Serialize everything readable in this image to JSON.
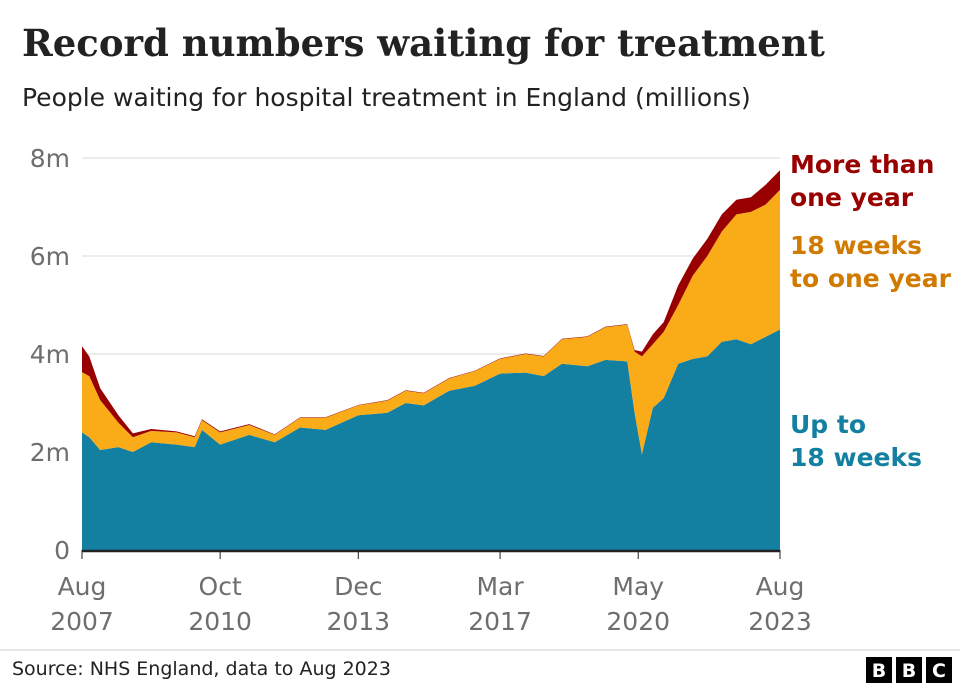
{
  "chart_data": {
    "type": "area",
    "stacked": true,
    "title": "Record numbers waiting for treatment",
    "subtitle": "People waiting for hospital treatment in England (millions)",
    "ylim": [
      0,
      8
    ],
    "yticks": [
      {
        "value": 0,
        "label": "0"
      },
      {
        "value": 2,
        "label": "2m"
      },
      {
        "value": 4,
        "label": "4m"
      },
      {
        "value": 6,
        "label": "6m"
      },
      {
        "value": 8,
        "label": "8m"
      }
    ],
    "xrange": [
      "2007-08",
      "2023-08"
    ],
    "xticks": [
      {
        "date": "2007-08",
        "line1": "Aug",
        "line2": "2007"
      },
      {
        "date": "2010-10",
        "line1": "Oct",
        "line2": "2010"
      },
      {
        "date": "2013-12",
        "line1": "Dec",
        "line2": "2013"
      },
      {
        "date": "2017-03",
        "line1": "Mar",
        "line2": "2017"
      },
      {
        "date": "2020-05",
        "line1": "May",
        "line2": "2020"
      },
      {
        "date": "2023-08",
        "line1": "Aug",
        "line2": "2023"
      }
    ],
    "grid": true,
    "legend_placement": "right, inline labels",
    "dates": [
      "2007-08",
      "2007-10",
      "2008-01",
      "2008-06",
      "2008-10",
      "2009-03",
      "2009-10",
      "2010-03",
      "2010-05",
      "2010-10",
      "2011-06",
      "2012-01",
      "2012-08",
      "2013-03",
      "2013-12",
      "2014-08",
      "2015-01",
      "2015-06",
      "2016-01",
      "2016-08",
      "2017-03",
      "2017-10",
      "2018-03",
      "2018-08",
      "2019-03",
      "2019-08",
      "2020-02",
      "2020-04",
      "2020-06",
      "2020-09",
      "2020-12",
      "2021-04",
      "2021-08",
      "2021-12",
      "2022-04",
      "2022-08",
      "2022-12",
      "2023-04",
      "2023-08"
    ],
    "series": [
      {
        "name": "Up to 18 weeks",
        "label_lines": [
          "Up to",
          "18 weeks"
        ],
        "color": "#1380A1",
        "label_color": "#1380A1",
        "values": [
          2.4,
          2.3,
          2.04,
          2.1,
          2.0,
          2.2,
          2.15,
          2.1,
          2.45,
          2.15,
          2.35,
          2.2,
          2.5,
          2.45,
          2.75,
          2.8,
          3.0,
          2.95,
          3.25,
          3.35,
          3.6,
          3.62,
          3.55,
          3.8,
          3.75,
          3.88,
          3.85,
          2.8,
          1.95,
          2.9,
          3.1,
          3.8,
          3.9,
          3.95,
          4.25,
          4.3,
          4.2,
          4.35,
          4.5
        ]
      },
      {
        "name": "18 weeks to one year",
        "label_lines": [
          "18 weeks",
          "to one year"
        ],
        "color": "#FAAB18",
        "label_color": "#D17A00",
        "values": [
          1.23,
          1.25,
          1.02,
          0.5,
          0.3,
          0.23,
          0.25,
          0.2,
          0.2,
          0.25,
          0.2,
          0.15,
          0.2,
          0.25,
          0.2,
          0.25,
          0.25,
          0.25,
          0.25,
          0.3,
          0.3,
          0.38,
          0.4,
          0.5,
          0.6,
          0.67,
          0.75,
          1.25,
          2.0,
          1.3,
          1.35,
          1.2,
          1.7,
          2.05,
          2.25,
          2.55,
          2.7,
          2.7,
          2.85
        ]
      },
      {
        "name": "More than one year",
        "label_lines": [
          "More than",
          "one year"
        ],
        "color": "#990000",
        "label_color": "#990000",
        "values": [
          0.53,
          0.4,
          0.24,
          0.15,
          0.08,
          0.04,
          0.02,
          0.02,
          0.02,
          0.02,
          0.02,
          0.01,
          0.01,
          0.01,
          0.01,
          0.01,
          0.01,
          0.01,
          0.01,
          0.01,
          0.01,
          0.01,
          0.01,
          0.01,
          0.01,
          0.01,
          0.01,
          0.03,
          0.1,
          0.2,
          0.2,
          0.4,
          0.35,
          0.35,
          0.35,
          0.3,
          0.3,
          0.4,
          0.4
        ]
      }
    ]
  },
  "footer": {
    "source": "Source: NHS England, data to Aug 2023",
    "logo_letters": [
      "B",
      "B",
      "C"
    ]
  }
}
